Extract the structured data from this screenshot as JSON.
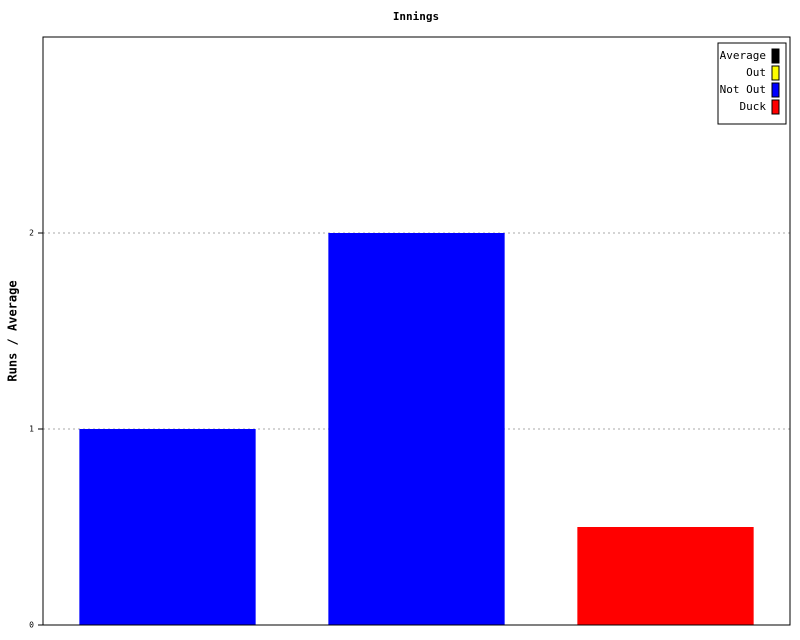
{
  "chart_data": {
    "type": "bar",
    "title": "Innings",
    "y_label": "Runs / Average",
    "categories": [
      null,
      null,
      null
    ],
    "series": [
      {
        "name": "Average",
        "color": "#000000",
        "values": [
          null,
          null,
          null
        ]
      },
      {
        "name": "Out",
        "color": "#ffff00",
        "values": [
          null,
          null,
          null
        ]
      },
      {
        "name": "Not Out",
        "color": "#0000ff",
        "values": [
          1,
          2,
          null
        ]
      },
      {
        "name": "Duck",
        "color": "#ff0000",
        "values": [
          null,
          null,
          0.5
        ]
      }
    ],
    "ylim": [
      0,
      3
    ],
    "yticks": [
      0,
      1,
      2
    ],
    "grid": true,
    "legend": "top-right"
  }
}
